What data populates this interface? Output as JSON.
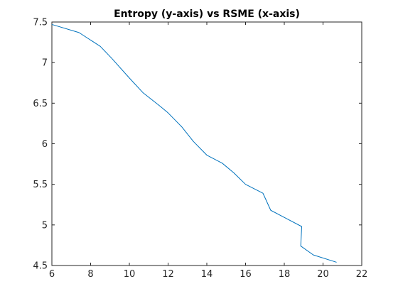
{
  "chart_data": {
    "type": "line",
    "title": "Entropy (y-axis) vs RSME (x-axis)",
    "xlabel": "",
    "ylabel": "",
    "xlim": [
      6,
      22
    ],
    "ylim": [
      4.5,
      7.5
    ],
    "xticks": [
      6,
      8,
      10,
      12,
      14,
      16,
      18,
      20,
      22
    ],
    "yticks": [
      4.5,
      5,
      5.5,
      6,
      6.5,
      7,
      7.5
    ],
    "ytick_labels": [
      "4.5",
      "5",
      "5.5",
      "6",
      "6.5",
      "7",
      "7.5"
    ],
    "grid": false,
    "series": [
      {
        "color": "#0072BD",
        "x": [
          6.0,
          7.4,
          8.5,
          9.1,
          10.0,
          10.7,
          11.6,
          12.0,
          12.7,
          13.3,
          14.0,
          14.8,
          15.4,
          16.0,
          16.9,
          17.3,
          18.1,
          18.9,
          18.85,
          19.5,
          20.7
        ],
        "y": [
          7.47,
          7.37,
          7.2,
          7.05,
          6.81,
          6.63,
          6.46,
          6.38,
          6.21,
          6.03,
          5.86,
          5.76,
          5.64,
          5.5,
          5.39,
          5.18,
          5.08,
          4.98,
          4.74,
          4.63,
          4.54
        ]
      }
    ]
  }
}
